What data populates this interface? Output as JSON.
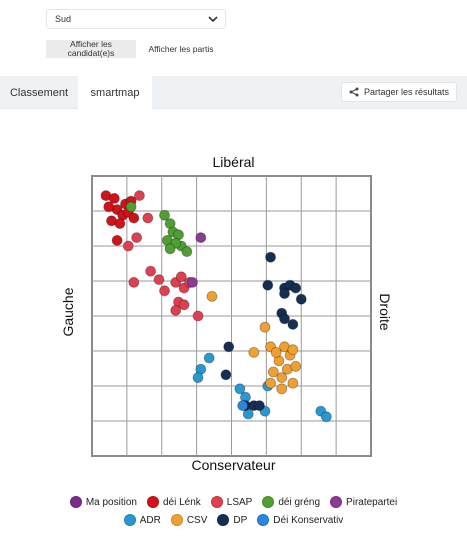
{
  "filters": {
    "region_select": "Sud",
    "candidates_button": "Afficher les candidat(e)s",
    "parties_button": "Afficher les partis"
  },
  "tabs": [
    "Classement",
    "smartmap"
  ],
  "share_label": "Partager les résultats",
  "axes": {
    "top": "Libéral",
    "bottom": "Conservateur",
    "left": "Gauche",
    "right": "Droite"
  },
  "colors": {
    "ma_position": "#7a2e8c",
    "dei_lenk": "#d0121b",
    "lsap": "#df4050",
    "dei_greng": "#4fa032",
    "piratepartei": "#8b3a95",
    "adr": "#2a98d0",
    "csv": "#f0a030",
    "dp": "#152f52",
    "dei_konservativ": "#2b86e0"
  },
  "legend": {
    "row1": [
      {
        "label": "Ma position",
        "color": "#7a2e8c"
      },
      {
        "label": "déi Lénk",
        "color": "#d0121b"
      },
      {
        "label": "LSAP",
        "color": "#df4050"
      },
      {
        "label": "déi gréng",
        "color": "#4fa032"
      },
      {
        "label": "Piratepartei",
        "color": "#8b3a95"
      }
    ],
    "row2": [
      {
        "label": "ADR",
        "color": "#2a98d0"
      },
      {
        "label": "CSV",
        "color": "#f0a030"
      },
      {
        "label": "DP",
        "color": "#152f52"
      },
      {
        "label": "Déi Konservativ",
        "color": "#2b86e0"
      }
    ]
  },
  "chart_data": {
    "type": "scatter",
    "xlim": [
      0,
      10
    ],
    "ylim": [
      0,
      10
    ],
    "grid": true,
    "series": [
      {
        "name": "déi Lénk",
        "color": "#d0121b",
        "points": [
          [
            0.5,
            9.3
          ],
          [
            0.8,
            9.2
          ],
          [
            1.2,
            9.0
          ],
          [
            0.9,
            8.8
          ],
          [
            1.1,
            8.6
          ],
          [
            0.7,
            8.4
          ],
          [
            1.3,
            8.7
          ],
          [
            1.0,
            8.3
          ],
          [
            1.5,
            8.5
          ],
          [
            0.6,
            8.9
          ],
          [
            1.4,
            9.1
          ],
          [
            0.9,
            7.7
          ]
        ]
      },
      {
        "name": "LSAP",
        "color": "#df4050",
        "points": [
          [
            1.3,
            7.5
          ],
          [
            1.7,
            9.3
          ],
          [
            2.0,
            8.5
          ],
          [
            1.6,
            7.8
          ],
          [
            2.1,
            6.6
          ],
          [
            2.4,
            6.3
          ],
          [
            3.0,
            6.2
          ],
          [
            3.2,
            6.4
          ],
          [
            3.3,
            6.0
          ],
          [
            3.5,
            6.2
          ],
          [
            3.1,
            5.5
          ],
          [
            3.3,
            5.4
          ],
          [
            3.0,
            5.2
          ],
          [
            2.6,
            5.9
          ],
          [
            1.5,
            6.2
          ],
          [
            3.8,
            5.0
          ]
        ]
      },
      {
        "name": "déi gréng",
        "color": "#4fa032",
        "points": [
          [
            1.4,
            8.9
          ],
          [
            2.6,
            8.6
          ],
          [
            2.8,
            8.3
          ],
          [
            2.9,
            8.0
          ],
          [
            3.1,
            7.9
          ],
          [
            2.7,
            7.7
          ],
          [
            3.2,
            7.5
          ],
          [
            3.0,
            7.6
          ],
          [
            3.4,
            7.3
          ],
          [
            2.8,
            7.4
          ]
        ]
      },
      {
        "name": "Piratepartei",
        "color": "#8b3a95",
        "points": [
          [
            3.9,
            7.8
          ],
          [
            3.6,
            6.2
          ]
        ]
      },
      {
        "name": "ADR",
        "color": "#2a98d0",
        "points": [
          [
            4.2,
            3.5
          ],
          [
            3.9,
            3.1
          ],
          [
            3.8,
            2.8
          ],
          [
            5.3,
            2.4
          ],
          [
            5.6,
            1.5
          ],
          [
            8.2,
            1.6
          ],
          [
            8.4,
            1.4
          ],
          [
            5.5,
            2.1
          ],
          [
            6.2,
            1.6
          ],
          [
            6.3,
            2.5
          ]
        ]
      },
      {
        "name": "CSV",
        "color": "#f0a030",
        "points": [
          [
            4.3,
            5.7
          ],
          [
            6.2,
            4.6
          ],
          [
            5.8,
            3.7
          ],
          [
            6.4,
            3.9
          ],
          [
            6.9,
            3.9
          ],
          [
            7.1,
            3.6
          ],
          [
            7.2,
            3.8
          ],
          [
            6.7,
            3.4
          ],
          [
            7.0,
            3.1
          ],
          [
            6.5,
            3.0
          ],
          [
            6.8,
            2.8
          ],
          [
            6.4,
            2.6
          ],
          [
            7.2,
            2.6
          ],
          [
            6.8,
            2.4
          ],
          [
            6.6,
            3.7
          ],
          [
            7.3,
            3.2
          ]
        ]
      },
      {
        "name": "DP",
        "color": "#152f52",
        "points": [
          [
            6.4,
            7.1
          ],
          [
            6.3,
            6.1
          ],
          [
            6.9,
            6.0
          ],
          [
            7.1,
            6.1
          ],
          [
            7.3,
            6.0
          ],
          [
            6.9,
            5.8
          ],
          [
            7.5,
            5.6
          ],
          [
            6.8,
            5.1
          ],
          [
            6.9,
            4.9
          ],
          [
            7.2,
            4.7
          ],
          [
            4.9,
            3.9
          ],
          [
            4.8,
            2.9
          ],
          [
            5.5,
            1.8
          ],
          [
            5.8,
            1.8
          ],
          [
            6.0,
            1.8
          ]
        ]
      },
      {
        "name": "Déi Konservativ",
        "color": "#2b86e0",
        "points": [
          [
            5.4,
            1.8
          ]
        ]
      },
      {
        "name": "Ma position",
        "color": "#7a2e8c",
        "points": []
      }
    ]
  }
}
